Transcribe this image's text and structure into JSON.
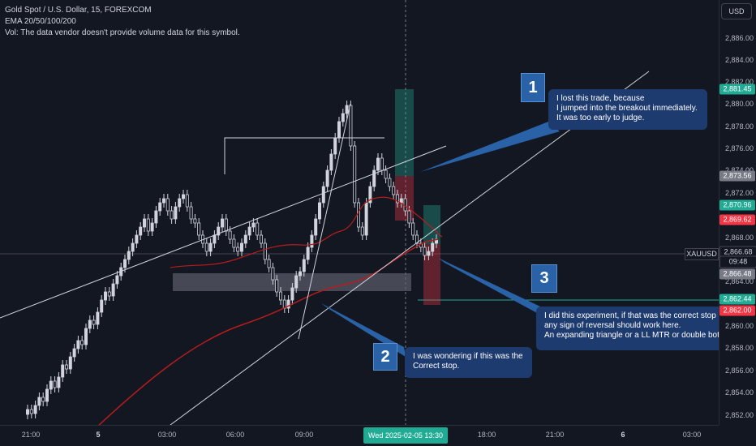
{
  "legend": {
    "title": "Gold Spot / U.S. Dollar, 15, FOREXCOM",
    "ema": "EMA 20/50/100/200",
    "vol": "Vol: The data vendor doesn't provide volume data for this symbol."
  },
  "currency_button": "USD",
  "symbol_tag": "XAUUSD",
  "price_axis": {
    "ticks": [
      "2,886.00",
      "2,884.00",
      "2,882.00",
      "2,880.00",
      "2,878.00",
      "2,876.00",
      "2,874.00",
      "2,872.00",
      "2,868.00",
      "2,864.00",
      "2,860.00",
      "2,858.00",
      "2,856.00",
      "2,854.00",
      "2,852.00"
    ],
    "labels": [
      {
        "text": "2,881.45",
        "bg": "#22ab94"
      },
      {
        "text": "2,873.56",
        "bg": "#787b86"
      },
      {
        "text": "2,870.96",
        "bg": "#22ab94"
      },
      {
        "text": "2,869.62",
        "bg": "#f23645"
      },
      {
        "text": "2,866.68",
        "bg": "#131722"
      },
      {
        "text": "09:48",
        "bg": "#131722"
      },
      {
        "text": "2,866.48",
        "bg": "#787b86"
      },
      {
        "text": "2,862.44",
        "bg": "#22ab94"
      },
      {
        "text": "2,862.00",
        "bg": "#f23645"
      }
    ]
  },
  "time_axis": {
    "labels": [
      {
        "text": "21:00",
        "bold": false
      },
      {
        "text": "5",
        "bold": true
      },
      {
        "text": "03:00",
        "bold": false
      },
      {
        "text": "06:00",
        "bold": false
      },
      {
        "text": "09:00",
        "bold": false
      },
      {
        "text": "18:00",
        "bold": false
      },
      {
        "text": "21:00",
        "bold": false
      },
      {
        "text": "6",
        "bold": true
      },
      {
        "text": "03:00",
        "bold": false
      }
    ],
    "current": "Wed 2025-02-05   13:30"
  },
  "notes": [
    {
      "number": "1",
      "lines": [
        "I lost this trade, because",
        "I jumped into the breakout immediately.",
        "It was too early to judge."
      ]
    },
    {
      "number": "2",
      "lines": [
        "I was wondering if this was the",
        "Correct stop."
      ]
    },
    {
      "number": "3",
      "lines": [
        "I did this experiment, if that was the correct stop",
        "any sign of reversal should work here.",
        "An expanding triangle or a LL MTR or double bottom"
      ]
    }
  ],
  "colors": {
    "up": "#d1d4dc",
    "down": "#d1d4dc",
    "ema": "#b71c1c",
    "background": "#131722",
    "note": "#1e3b70",
    "long_zone": "#22ab94",
    "short_zone": "#f23645"
  }
}
